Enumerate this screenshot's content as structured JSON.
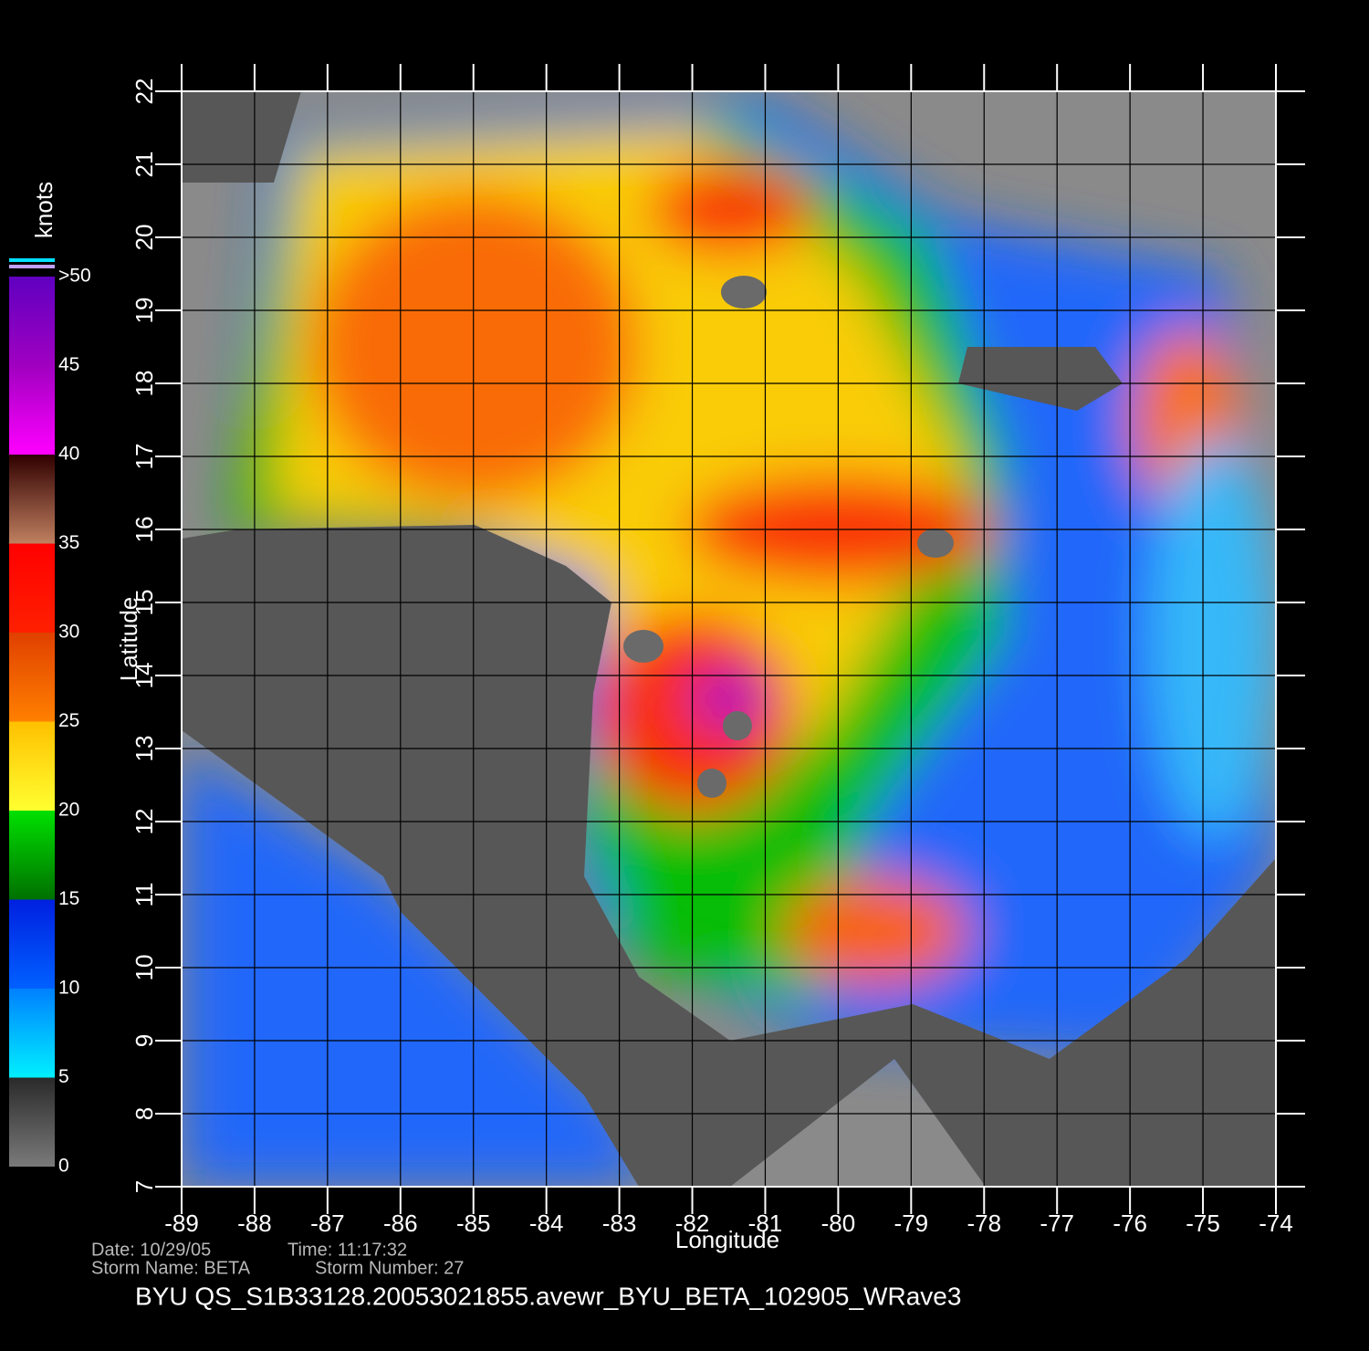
{
  "map": {
    "xlim": [
      -89,
      -74
    ],
    "xticks": [
      -89,
      -88,
      -87,
      -86,
      -85,
      -84,
      -83,
      -82,
      -81,
      -80,
      -79,
      -78,
      -77,
      -76,
      -75,
      -74
    ],
    "ylim": [
      7,
      22
    ],
    "yticks": [
      7,
      8,
      9,
      10,
      11,
      12,
      13,
      14,
      15,
      16,
      17,
      18,
      19,
      20,
      21,
      22
    ],
    "xlabel": "Longitude",
    "ylabel": "Latitude",
    "grid": true
  },
  "colorbar": {
    "label": "knots",
    "lim": [
      0,
      50
    ],
    "ticks": [
      0,
      5,
      10,
      15,
      20,
      25,
      30,
      35,
      40,
      45,
      {
        "value": 50,
        "label": ">50"
      }
    ]
  },
  "footer": {
    "date": "Date: 10/29/05",
    "time": "Time: 11:17:32",
    "storm_name": "Storm Name: BETA",
    "storm_number": "Storm Number: 27",
    "title": "BYU QS_S1B33128.20053021855.avewr_BYU_BETA_102905_WRave3"
  }
}
